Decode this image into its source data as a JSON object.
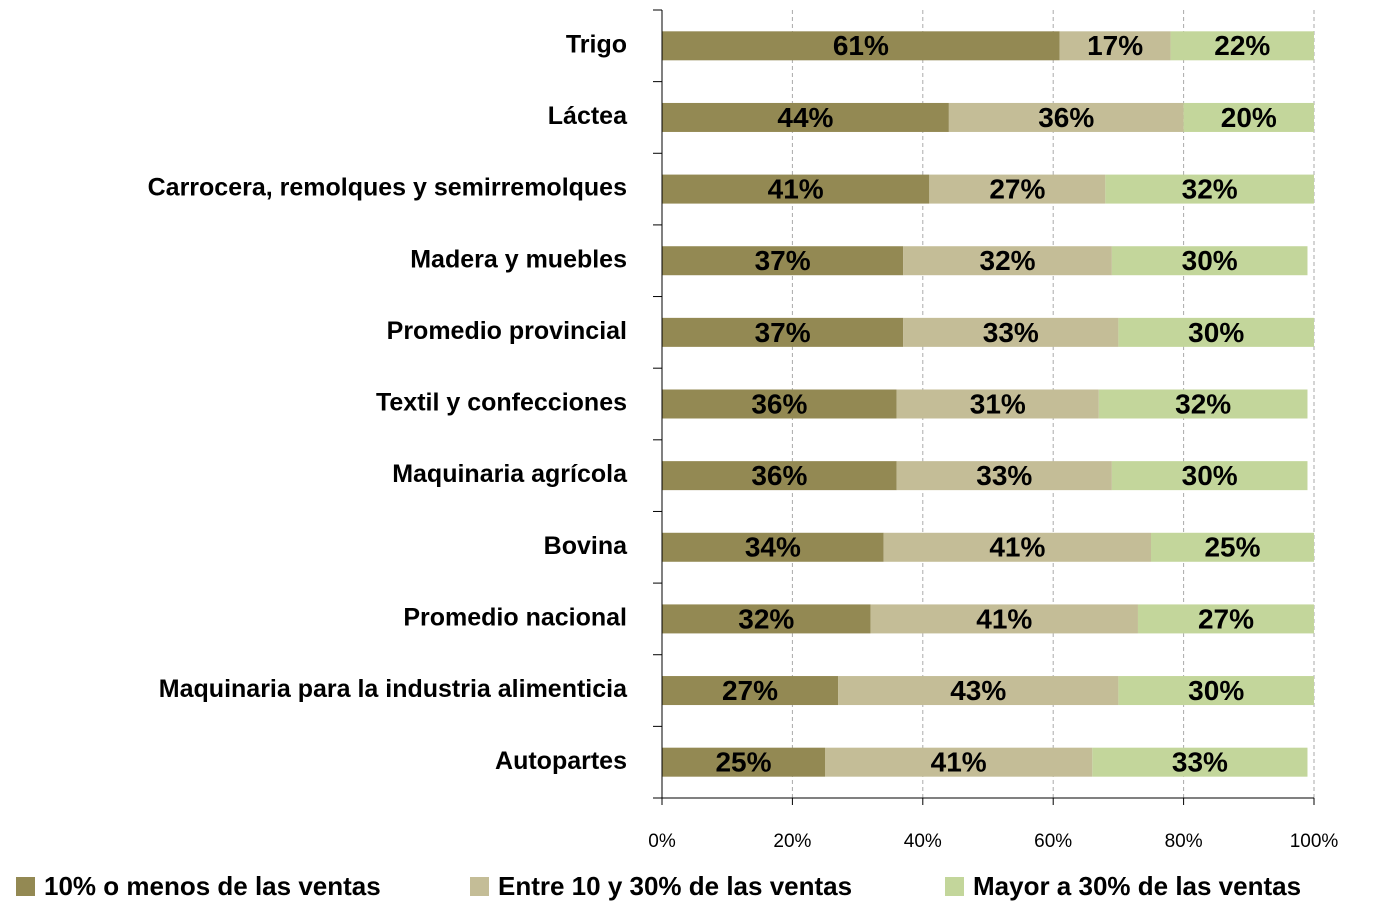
{
  "chart_data": {
    "type": "stacked-bar-horizontal",
    "categories": [
      "Trigo",
      "Láctea",
      "Carrocera, remolques y semirremolques",
      "Madera y muebles",
      "Promedio provincial",
      "Textil y confecciones",
      "Maquinaria agrícola",
      "Bovina",
      "Promedio nacional",
      "Maquinaria para la industria alimenticia",
      "Autopartes"
    ],
    "series": [
      {
        "name": "10% o menos de las ventas",
        "color": "#938953",
        "values": [
          61,
          44,
          41,
          37,
          37,
          36,
          36,
          34,
          32,
          27,
          25
        ],
        "value_labels": [
          "61%",
          "44%",
          "41%",
          "37%",
          "37%",
          "36%",
          "36%",
          "34%",
          "32%",
          "27%",
          "25%"
        ]
      },
      {
        "name": "Entre 10 y 30% de las ventas",
        "color": "#c4bd97",
        "values": [
          17,
          36,
          27,
          32,
          33,
          31,
          33,
          41,
          41,
          43,
          41
        ],
        "value_labels": [
          "17%",
          "36%",
          "27%",
          "32%",
          "33%",
          "31%",
          "33%",
          "41%",
          "41%",
          "43%",
          "41%"
        ]
      },
      {
        "name": "Mayor a 30% de las ventas",
        "color": "#c3d69b",
        "values": [
          22,
          20,
          32,
          30,
          30,
          32,
          30,
          25,
          27,
          30,
          33
        ],
        "value_labels": [
          "22%",
          "20%",
          "32%",
          "30%",
          "30%",
          "32%",
          "30%",
          "25%",
          "27%",
          "30%",
          "33%"
        ]
      }
    ],
    "xlim": [
      0,
      100
    ],
    "xticks": [
      {
        "value": 0,
        "label": "0%"
      },
      {
        "value": 20,
        "label": "20%"
      },
      {
        "value": 40,
        "label": "40%"
      },
      {
        "value": 60,
        "label": "60%"
      },
      {
        "value": 80,
        "label": "80%"
      },
      {
        "value": 100,
        "label": "100%"
      }
    ],
    "grid": true,
    "legend": "bottom"
  }
}
